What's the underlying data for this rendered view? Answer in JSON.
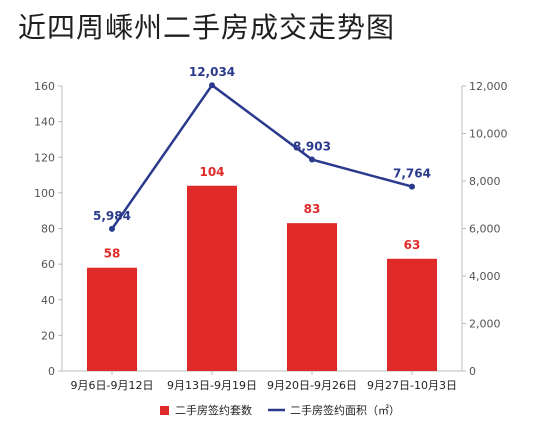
{
  "title": "近四周嵊州二手房成交走势图",
  "chart_data": {
    "type": "bar",
    "categories": [
      "9月6日-9月12日",
      "9月13日-9月19日",
      "9月20日-9月26日",
      "9月27日-10月3日"
    ],
    "series": [
      {
        "name": "二手房签约套数",
        "type": "bar",
        "axis": "left",
        "values": [
          58,
          104,
          83,
          63
        ],
        "labels": [
          "58",
          "104",
          "83",
          "63"
        ],
        "color": "#e02a2a"
      },
      {
        "name": "二手房签约面积（㎡）",
        "type": "line",
        "axis": "right",
        "values": [
          5984,
          12034,
          8903,
          7764
        ],
        "labels": [
          "5,984",
          "12,034",
          "8,903",
          "7,764"
        ],
        "color": "#2b3a8c"
      }
    ],
    "ylim_left": [
      0,
      160
    ],
    "yticks_left": [
      "0",
      "20",
      "40",
      "60",
      "80",
      "100",
      "120",
      "140",
      "160"
    ],
    "ylim_right": [
      0,
      12000
    ],
    "yticks_right": [
      "0",
      "2,000",
      "4,000",
      "6,000",
      "8,000",
      "10,000",
      "12,000"
    ],
    "legend_position": "bottom"
  }
}
